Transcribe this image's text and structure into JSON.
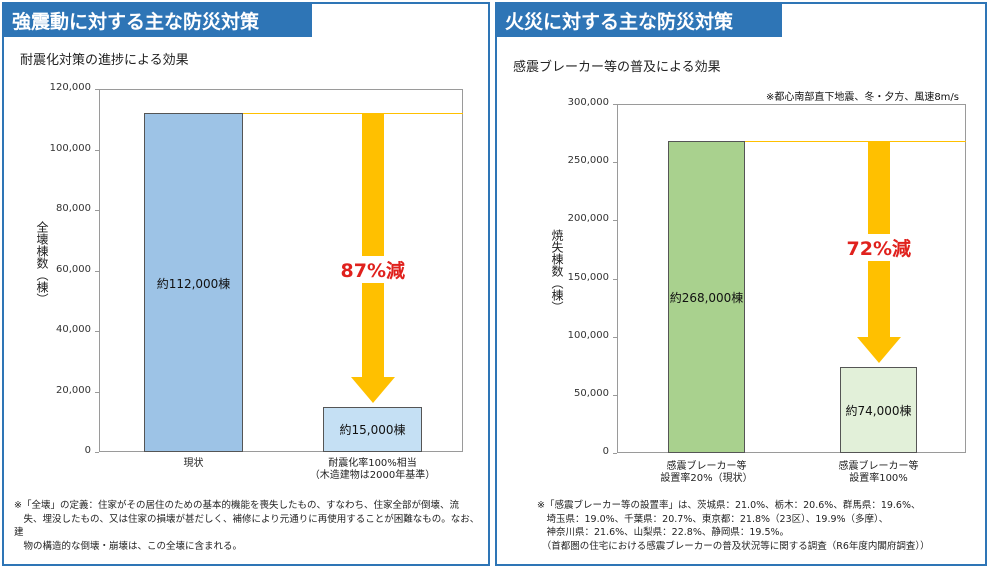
{
  "chart_data": [
    {
      "type": "bar",
      "title": "強震動に対する主な防災対策",
      "subtitle": "耐震化対策の進捗による効果",
      "y_label": "全壊棟数（棟）",
      "categories": [
        "現状",
        "耐震化率100%相当\n（木造建物は2000年基準）"
      ],
      "values": [
        112000,
        15000
      ],
      "value_labels": [
        "約112,000棟",
        "約15,000棟"
      ],
      "colors": [
        "#9dc3e6",
        "#c5e0f4"
      ],
      "annotation": "87%減",
      "ylim": [
        0,
        120000
      ],
      "yticks": [
        0,
        {
          "value": 20000,
          "label": "20,000"
        },
        {
          "value": 40000,
          "label": "40,000"
        },
        {
          "value": 60000,
          "label": "60,000"
        },
        {
          "value": 80000,
          "label": "80,000"
        },
        {
          "value": 100000,
          "label": "100,000"
        },
        {
          "value": 120000,
          "label": "120,000"
        }
      ],
      "grid": false,
      "note": "※「全壊」の定義：住家がその居住のための基本的機能を喪失したもの、すなわち、住家全部が倒壊、流\n　失、埋没したもの、又は住家の損壊が甚だしく、補修により元通りに再使用することが困難なもの。なお、建\n　物の構造的な倒壊・崩壊は、この全壊に含まれる。"
    },
    {
      "type": "bar",
      "title": "火災に対する主な防災対策",
      "subtitle": "感震ブレーカー等の普及による効果",
      "condition": "※都心南部直下地震、冬・夕方、風速8m/s",
      "y_label": "焼失棟数（棟）",
      "categories": [
        "感震ブレーカー等\n設置率20%（現状）",
        "感震ブレーカー等\n設置率100%"
      ],
      "values": [
        268000,
        74000
      ],
      "value_labels": [
        "約268,000棟",
        "約74,000棟"
      ],
      "colors": [
        "#a9d18e",
        "#e2f0d9"
      ],
      "annotation": "72%減",
      "ylim": [
        0,
        300000
      ],
      "yticks": [
        0,
        {
          "value": 50000,
          "label": "50,000"
        },
        {
          "value": 100000,
          "label": "100,000"
        },
        {
          "value": 150000,
          "label": "150,000"
        },
        {
          "value": 200000,
          "label": "200,000"
        },
        {
          "value": 250000,
          "label": "250,000"
        },
        {
          "value": 300000,
          "label": "300,000"
        }
      ],
      "grid": false,
      "note": "※「感震ブレーカー等の設置率」は、茨城県：21.0%、栃木：20.6%、群馬県：19.6%、\n　埼玉県：19.0%、千葉県：20.7%、東京都：21.8%（23区）、19.9%（多摩）、\n　神奈川県：21.6%、山梨県：22.8%、静岡県：19.5%。\n　（首都圏の住宅における感震ブレーカーの普及状況等に関する調査（R6年度内閣府調査））"
    }
  ]
}
